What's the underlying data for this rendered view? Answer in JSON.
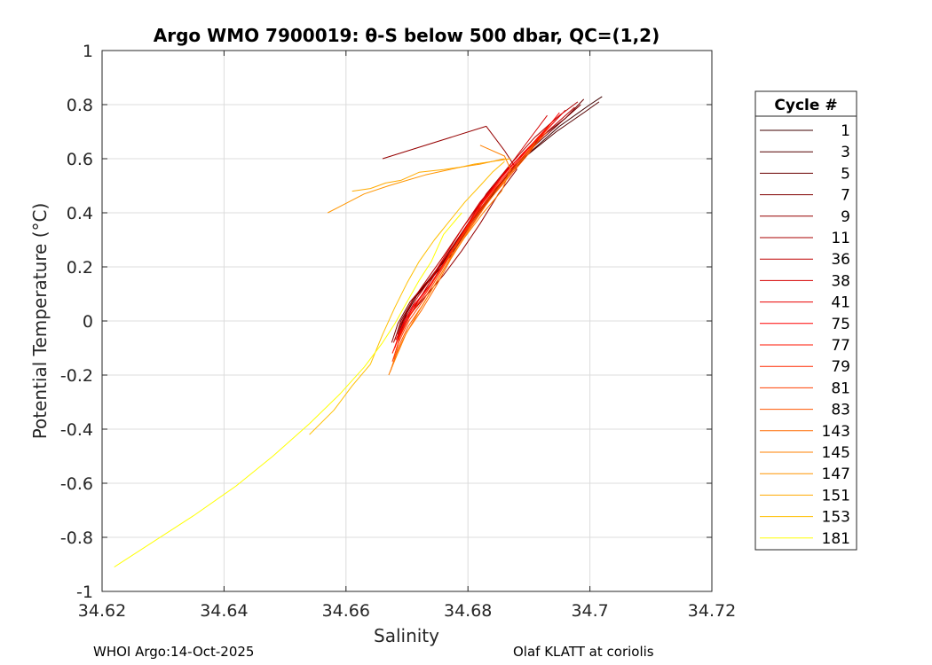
{
  "chart_data": {
    "type": "line",
    "title": "Argo WMO 7900019: θ-S below 500 dbar,  QC=(1,2)",
    "xlabel": "Salinity",
    "ylabel": "Potential Temperature (°C)",
    "xlim": [
      34.62,
      34.72
    ],
    "ylim": [
      -1,
      1
    ],
    "xticks": [
      "34.62",
      "34.64",
      "34.66",
      "34.68",
      "34.7",
      "34.72"
    ],
    "yticks": [
      "-1",
      "-0.8",
      "-0.6",
      "-0.4",
      "-0.2",
      "0",
      "0.2",
      "0.4",
      "0.6",
      "0.8",
      "1"
    ],
    "grid": true,
    "legend": {
      "title": "Cycle #",
      "placement": "outside-right"
    },
    "series": [
      {
        "name": "1",
        "color": "#3f0000",
        "x": [
          34.702,
          34.7,
          34.695,
          34.69,
          34.685,
          34.681,
          34.678,
          34.675,
          34.672,
          34.67,
          34.669
        ],
        "y": [
          0.83,
          0.8,
          0.72,
          0.62,
          0.5,
          0.38,
          0.27,
          0.19,
          0.11,
          0.03,
          -0.03
        ]
      },
      {
        "name": "3",
        "color": "#550000",
        "x": [
          34.7015,
          34.699,
          34.6945,
          34.689,
          34.6845,
          34.6805,
          34.6775,
          34.6745,
          34.6715,
          34.6695,
          34.6685
        ],
        "y": [
          0.81,
          0.77,
          0.7,
          0.6,
          0.48,
          0.36,
          0.25,
          0.17,
          0.09,
          0.01,
          -0.05
        ]
      },
      {
        "name": "5",
        "color": "#6a0000",
        "x": [
          34.699,
          34.696,
          34.692,
          34.688,
          34.684,
          34.68,
          34.677,
          34.674,
          34.671,
          34.669,
          34.668
        ],
        "y": [
          0.82,
          0.75,
          0.68,
          0.58,
          0.47,
          0.35,
          0.25,
          0.16,
          0.08,
          0.0,
          -0.07
        ]
      },
      {
        "name": "7",
        "color": "#800000",
        "x": [
          34.6985,
          34.6955,
          34.6915,
          34.6875,
          34.6835,
          34.6795,
          34.6765,
          34.6735,
          34.6705,
          34.6685,
          34.6675
        ],
        "y": [
          0.8,
          0.74,
          0.66,
          0.57,
          0.46,
          0.34,
          0.24,
          0.15,
          0.07,
          -0.01,
          -0.08
        ]
      },
      {
        "name": "9",
        "color": "#950000",
        "x": [
          34.666,
          34.683,
          34.686,
          34.688,
          34.685,
          34.682,
          34.679,
          34.676,
          34.673,
          34.67,
          34.6685
        ],
        "y": [
          0.6,
          0.72,
          0.63,
          0.56,
          0.47,
          0.36,
          0.26,
          0.17,
          0.09,
          0.01,
          -0.06
        ]
      },
      {
        "name": "11",
        "color": "#aa0000",
        "x": [
          34.698,
          34.695,
          34.691,
          34.687,
          34.683,
          34.68,
          34.677,
          34.6745,
          34.672,
          34.67,
          34.6685
        ],
        "y": [
          0.81,
          0.76,
          0.68,
          0.58,
          0.47,
          0.36,
          0.26,
          0.17,
          0.08,
          0.0,
          -0.07
        ]
      },
      {
        "name": "36",
        "color": "#bf0000",
        "x": [
          34.6975,
          34.6945,
          34.6905,
          34.6865,
          34.6825,
          34.679,
          34.676,
          34.6735,
          34.671,
          34.669,
          34.6678
        ],
        "y": [
          0.79,
          0.73,
          0.65,
          0.56,
          0.45,
          0.34,
          0.24,
          0.16,
          0.08,
          -0.01,
          -0.08
        ]
      },
      {
        "name": "38",
        "color": "#d50000",
        "x": [
          34.693,
          34.691,
          34.688,
          34.685,
          34.682,
          34.679,
          34.6765,
          34.674,
          34.6715,
          34.6695,
          34.6682
        ],
        "y": [
          0.76,
          0.7,
          0.61,
          0.52,
          0.44,
          0.34,
          0.25,
          0.16,
          0.08,
          0.0,
          -0.07
        ]
      },
      {
        "name": "41",
        "color": "#ea0000",
        "x": [
          34.696,
          34.6935,
          34.69,
          34.686,
          34.6825,
          34.6795,
          34.6765,
          34.674,
          34.6712,
          34.6692,
          34.668
        ],
        "y": [
          0.78,
          0.72,
          0.64,
          0.55,
          0.44,
          0.33,
          0.23,
          0.14,
          0.06,
          -0.02,
          -0.1
        ]
      },
      {
        "name": "75",
        "color": "#ff0000",
        "x": [
          34.695,
          34.6925,
          34.689,
          34.6855,
          34.682,
          34.679,
          34.6762,
          34.6737,
          34.671,
          34.669,
          34.6678
        ],
        "y": [
          0.77,
          0.7,
          0.62,
          0.53,
          0.43,
          0.32,
          0.22,
          0.13,
          0.05,
          -0.03,
          -0.11
        ]
      },
      {
        "name": "77",
        "color": "#ff1500",
        "x": [
          34.694,
          34.6915,
          34.6885,
          34.685,
          34.6815,
          34.6785,
          34.6758,
          34.6733,
          34.6707,
          34.6688,
          34.6676
        ],
        "y": [
          0.74,
          0.68,
          0.6,
          0.51,
          0.41,
          0.3,
          0.2,
          0.11,
          0.03,
          -0.05,
          -0.12
        ]
      },
      {
        "name": "79",
        "color": "#ff2a00",
        "x": [
          34.6935,
          34.691,
          34.688,
          34.6845,
          34.6812,
          34.6782,
          34.6755,
          34.673,
          34.6705,
          34.6688,
          34.6678
        ],
        "y": [
          0.72,
          0.66,
          0.58,
          0.49,
          0.39,
          0.29,
          0.19,
          0.1,
          0.02,
          -0.06,
          -0.14
        ]
      },
      {
        "name": "81",
        "color": "#ff4000",
        "x": [
          34.693,
          34.6905,
          34.6875,
          34.684,
          34.6808,
          34.6778,
          34.6752,
          34.6728,
          34.6703,
          34.6686,
          34.6676
        ],
        "y": [
          0.7,
          0.64,
          0.56,
          0.47,
          0.37,
          0.27,
          0.17,
          0.08,
          0.0,
          -0.08,
          -0.15
        ]
      },
      {
        "name": "83",
        "color": "#ff5500",
        "x": [
          34.692,
          34.69,
          34.687,
          34.6836,
          34.6804,
          34.6775,
          34.675,
          34.6726,
          34.6702,
          34.6685,
          34.6674
        ],
        "y": [
          0.68,
          0.62,
          0.54,
          0.45,
          0.35,
          0.25,
          0.15,
          0.06,
          -0.02,
          -0.1,
          -0.18
        ]
      },
      {
        "name": "143",
        "color": "#ff6a00",
        "x": [
          34.691,
          34.689,
          34.686,
          34.683,
          34.68,
          34.6772,
          34.6748,
          34.6724,
          34.67,
          34.6683,
          34.6672
        ],
        "y": [
          0.66,
          0.6,
          0.52,
          0.43,
          0.33,
          0.23,
          0.13,
          0.04,
          -0.04,
          -0.12,
          -0.19
        ]
      },
      {
        "name": "145",
        "color": "#ff8000",
        "x": [
          34.682,
          34.686,
          34.687,
          34.6855,
          34.6825,
          34.6795,
          34.6768,
          34.6742,
          34.6718,
          34.6698,
          34.6683,
          34.667
        ],
        "y": [
          0.65,
          0.61,
          0.56,
          0.48,
          0.4,
          0.31,
          0.22,
          0.12,
          0.03,
          -0.05,
          -0.13,
          -0.2
        ]
      },
      {
        "name": "147",
        "color": "#ff9500",
        "x": [
          34.686,
          34.682,
          34.679,
          34.677,
          34.673,
          34.67,
          34.667,
          34.663,
          34.657
        ],
        "y": [
          0.6,
          0.58,
          0.57,
          0.56,
          0.54,
          0.52,
          0.5,
          0.47,
          0.4
        ]
      },
      {
        "name": "151",
        "color": "#ffaa00",
        "x": [
          34.687,
          34.684,
          34.681,
          34.679,
          34.676,
          34.672,
          34.669,
          34.6665,
          34.664,
          34.661
        ],
        "y": [
          0.6,
          0.59,
          0.58,
          0.57,
          0.56,
          0.55,
          0.52,
          0.51,
          0.49,
          0.48
        ]
      },
      {
        "name": "153",
        "color": "#ffbf00",
        "x": [
          34.686,
          34.684,
          34.682,
          34.6795,
          34.677,
          34.6745,
          34.672,
          34.67,
          34.668,
          34.666,
          34.664,
          34.661,
          34.658,
          34.654
        ],
        "y": [
          0.59,
          0.55,
          0.5,
          0.44,
          0.37,
          0.3,
          0.22,
          0.14,
          0.05,
          -0.05,
          -0.16,
          -0.24,
          -0.33,
          -0.42
        ]
      },
      {
        "name": "181",
        "color": "#ffff00",
        "x": [
          34.679,
          34.676,
          34.674,
          34.672,
          34.67,
          34.668,
          34.666,
          34.663,
          34.659,
          34.654,
          34.648,
          34.642,
          34.635,
          34.622
        ],
        "y": [
          0.4,
          0.32,
          0.22,
          0.15,
          0.07,
          -0.01,
          -0.08,
          -0.17,
          -0.27,
          -0.38,
          -0.5,
          -0.61,
          -0.72,
          -0.91
        ]
      }
    ]
  },
  "footer": {
    "left": "WHOI Argo:14-Oct-2025",
    "right": "Olaf KLATT at coriolis"
  }
}
